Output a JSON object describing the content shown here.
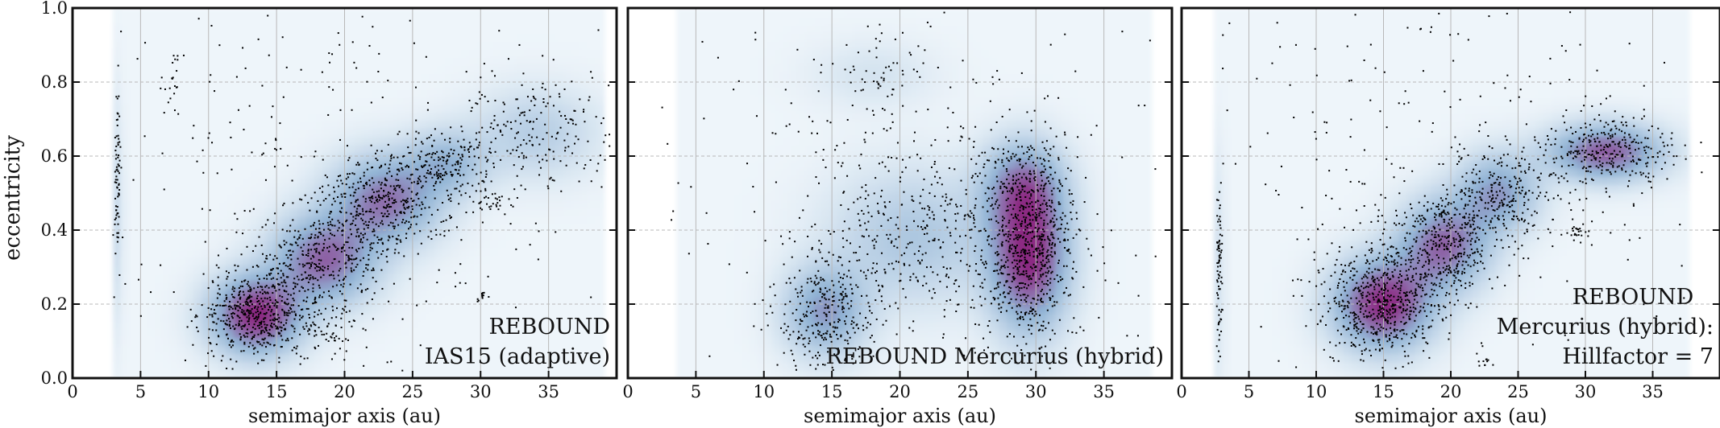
{
  "figure": {
    "ylabel": "eccentricity",
    "colors": {
      "frame": "#111111",
      "grid": "#b8b8b8",
      "points": "#000000",
      "density_low": "#eef5fa",
      "density_mid": "#8fb2d4",
      "density_high": "#8c1a7a"
    }
  },
  "chart_data": [
    {
      "type": "scatter",
      "title": "",
      "annotation": [
        "REBOUND",
        "IAS15 (adaptive)"
      ],
      "xlabel": "semimajor axis (au)",
      "ylabel": "eccentricity",
      "xlim": [
        0,
        40
      ],
      "ylim": [
        0,
        1.0
      ],
      "xticks": [
        0,
        5,
        10,
        15,
        20,
        25,
        30,
        35
      ],
      "yticks": [
        0.0,
        0.2,
        0.4,
        0.6,
        0.8,
        1.0
      ],
      "grid": true,
      "overlay": "density-heatmap",
      "density_clusters": [
        {
          "x": 13.5,
          "y": 0.17,
          "sx": 2.2,
          "sy": 0.07,
          "w": 1.0
        },
        {
          "x": 18.5,
          "y": 0.32,
          "sx": 2.5,
          "sy": 0.08,
          "w": 0.75
        },
        {
          "x": 23.0,
          "y": 0.48,
          "sx": 2.6,
          "sy": 0.08,
          "w": 0.7
        },
        {
          "x": 27.5,
          "y": 0.58,
          "sx": 2.0,
          "sy": 0.06,
          "w": 0.4
        },
        {
          "x": 34.0,
          "y": 0.66,
          "sx": 3.0,
          "sy": 0.08,
          "w": 0.25
        },
        {
          "x": 3.3,
          "y": 0.45,
          "sx": 0.3,
          "sy": 0.2,
          "w": 0.15
        }
      ],
      "points": [
        {
          "x": 3.3,
          "y": 0.55,
          "sx": 0.12,
          "sy": 0.12,
          "n": 70
        },
        {
          "x": 7.5,
          "y": 0.82,
          "sx": 0.5,
          "sy": 0.04,
          "n": 20
        },
        {
          "x": 13.5,
          "y": 0.17,
          "sx": 2.0,
          "sy": 0.06,
          "n": 520
        },
        {
          "x": 18.5,
          "y": 0.32,
          "sx": 2.2,
          "sy": 0.08,
          "n": 380
        },
        {
          "x": 23.0,
          "y": 0.48,
          "sx": 2.3,
          "sy": 0.07,
          "n": 380
        },
        {
          "x": 27.5,
          "y": 0.58,
          "sx": 1.8,
          "sy": 0.05,
          "n": 150
        },
        {
          "x": 34.0,
          "y": 0.66,
          "sx": 3.0,
          "sy": 0.07,
          "n": 190
        },
        {
          "x": 19.0,
          "y": 0.13,
          "sx": 0.7,
          "sy": 0.03,
          "n": 40
        },
        {
          "x": 30.5,
          "y": 0.48,
          "sx": 1.0,
          "sy": 0.02,
          "n": 40
        },
        {
          "x": 30.0,
          "y": 0.22,
          "sx": 0.4,
          "sy": 0.01,
          "n": 12
        },
        {
          "x": 20.0,
          "y": 0.55,
          "sx": 10.0,
          "sy": 0.3,
          "n": 320
        }
      ]
    },
    {
      "type": "scatter",
      "title": "",
      "annotation": [
        "REBOUND Mercurius (hybrid)"
      ],
      "xlabel": "semimajor axis (au)",
      "ylabel": "",
      "xlim": [
        0,
        40
      ],
      "ylim": [
        0,
        1.0
      ],
      "xticks": [
        0,
        5,
        10,
        15,
        20,
        25,
        30,
        35
      ],
      "yticks": [
        0.0,
        0.2,
        0.4,
        0.6,
        0.8,
        1.0
      ],
      "grid": true,
      "overlay": "density-heatmap",
      "density_clusters": [
        {
          "x": 14.5,
          "y": 0.18,
          "sx": 2.0,
          "sy": 0.08,
          "w": 0.55
        },
        {
          "x": 29.5,
          "y": 0.33,
          "sx": 1.9,
          "sy": 0.13,
          "w": 1.0
        },
        {
          "x": 29.0,
          "y": 0.52,
          "sx": 2.0,
          "sy": 0.08,
          "w": 0.55
        },
        {
          "x": 21.0,
          "y": 0.38,
          "sx": 4.0,
          "sy": 0.12,
          "w": 0.3
        },
        {
          "x": 18.0,
          "y": 0.82,
          "sx": 3.0,
          "sy": 0.06,
          "w": 0.1
        }
      ],
      "points": [
        {
          "x": 14.5,
          "y": 0.18,
          "sx": 1.8,
          "sy": 0.08,
          "n": 280
        },
        {
          "x": 29.5,
          "y": 0.33,
          "sx": 1.6,
          "sy": 0.12,
          "n": 650
        },
        {
          "x": 29.0,
          "y": 0.52,
          "sx": 1.8,
          "sy": 0.08,
          "n": 200
        },
        {
          "x": 21.0,
          "y": 0.38,
          "sx": 4.0,
          "sy": 0.12,
          "n": 330
        },
        {
          "x": 18.0,
          "y": 0.82,
          "sx": 2.0,
          "sy": 0.05,
          "n": 50
        },
        {
          "x": 20.0,
          "y": 0.5,
          "sx": 12.0,
          "sy": 0.3,
          "n": 320
        }
      ]
    },
    {
      "type": "scatter",
      "title": "",
      "annotation": [
        "REBOUND",
        "Mercurius (hybrid):",
        "Hillfactor = 7"
      ],
      "xlabel": "semimajor axis (au)",
      "ylabel": "",
      "xlim": [
        0,
        40
      ],
      "ylim": [
        0,
        1.0
      ],
      "xticks": [
        0,
        5,
        10,
        15,
        20,
        25,
        30,
        35
      ],
      "yticks": [
        0.0,
        0.2,
        0.4,
        0.6,
        0.8,
        1.0
      ],
      "grid": true,
      "overlay": "density-heatmap",
      "density_clusters": [
        {
          "x": 15.0,
          "y": 0.2,
          "sx": 2.4,
          "sy": 0.08,
          "w": 1.0
        },
        {
          "x": 19.5,
          "y": 0.36,
          "sx": 2.2,
          "sy": 0.08,
          "w": 0.75
        },
        {
          "x": 23.5,
          "y": 0.5,
          "sx": 2.0,
          "sy": 0.07,
          "w": 0.55
        },
        {
          "x": 31.5,
          "y": 0.61,
          "sx": 2.8,
          "sy": 0.05,
          "w": 0.8
        },
        {
          "x": 2.8,
          "y": 0.3,
          "sx": 0.3,
          "sy": 0.2,
          "w": 0.12
        }
      ],
      "points": [
        {
          "x": 2.8,
          "y": 0.3,
          "sx": 0.12,
          "sy": 0.12,
          "n": 80
        },
        {
          "x": 15.0,
          "y": 0.2,
          "sx": 2.3,
          "sy": 0.08,
          "n": 620
        },
        {
          "x": 19.5,
          "y": 0.36,
          "sx": 2.0,
          "sy": 0.07,
          "n": 380
        },
        {
          "x": 23.5,
          "y": 0.5,
          "sx": 1.9,
          "sy": 0.06,
          "n": 230
        },
        {
          "x": 31.5,
          "y": 0.61,
          "sx": 2.6,
          "sy": 0.05,
          "n": 300
        },
        {
          "x": 29.5,
          "y": 0.39,
          "sx": 0.5,
          "sy": 0.015,
          "n": 25
        },
        {
          "x": 22.5,
          "y": 0.05,
          "sx": 0.3,
          "sy": 0.02,
          "n": 12
        },
        {
          "x": 20.0,
          "y": 0.58,
          "sx": 10.0,
          "sy": 0.28,
          "n": 300
        }
      ]
    }
  ]
}
